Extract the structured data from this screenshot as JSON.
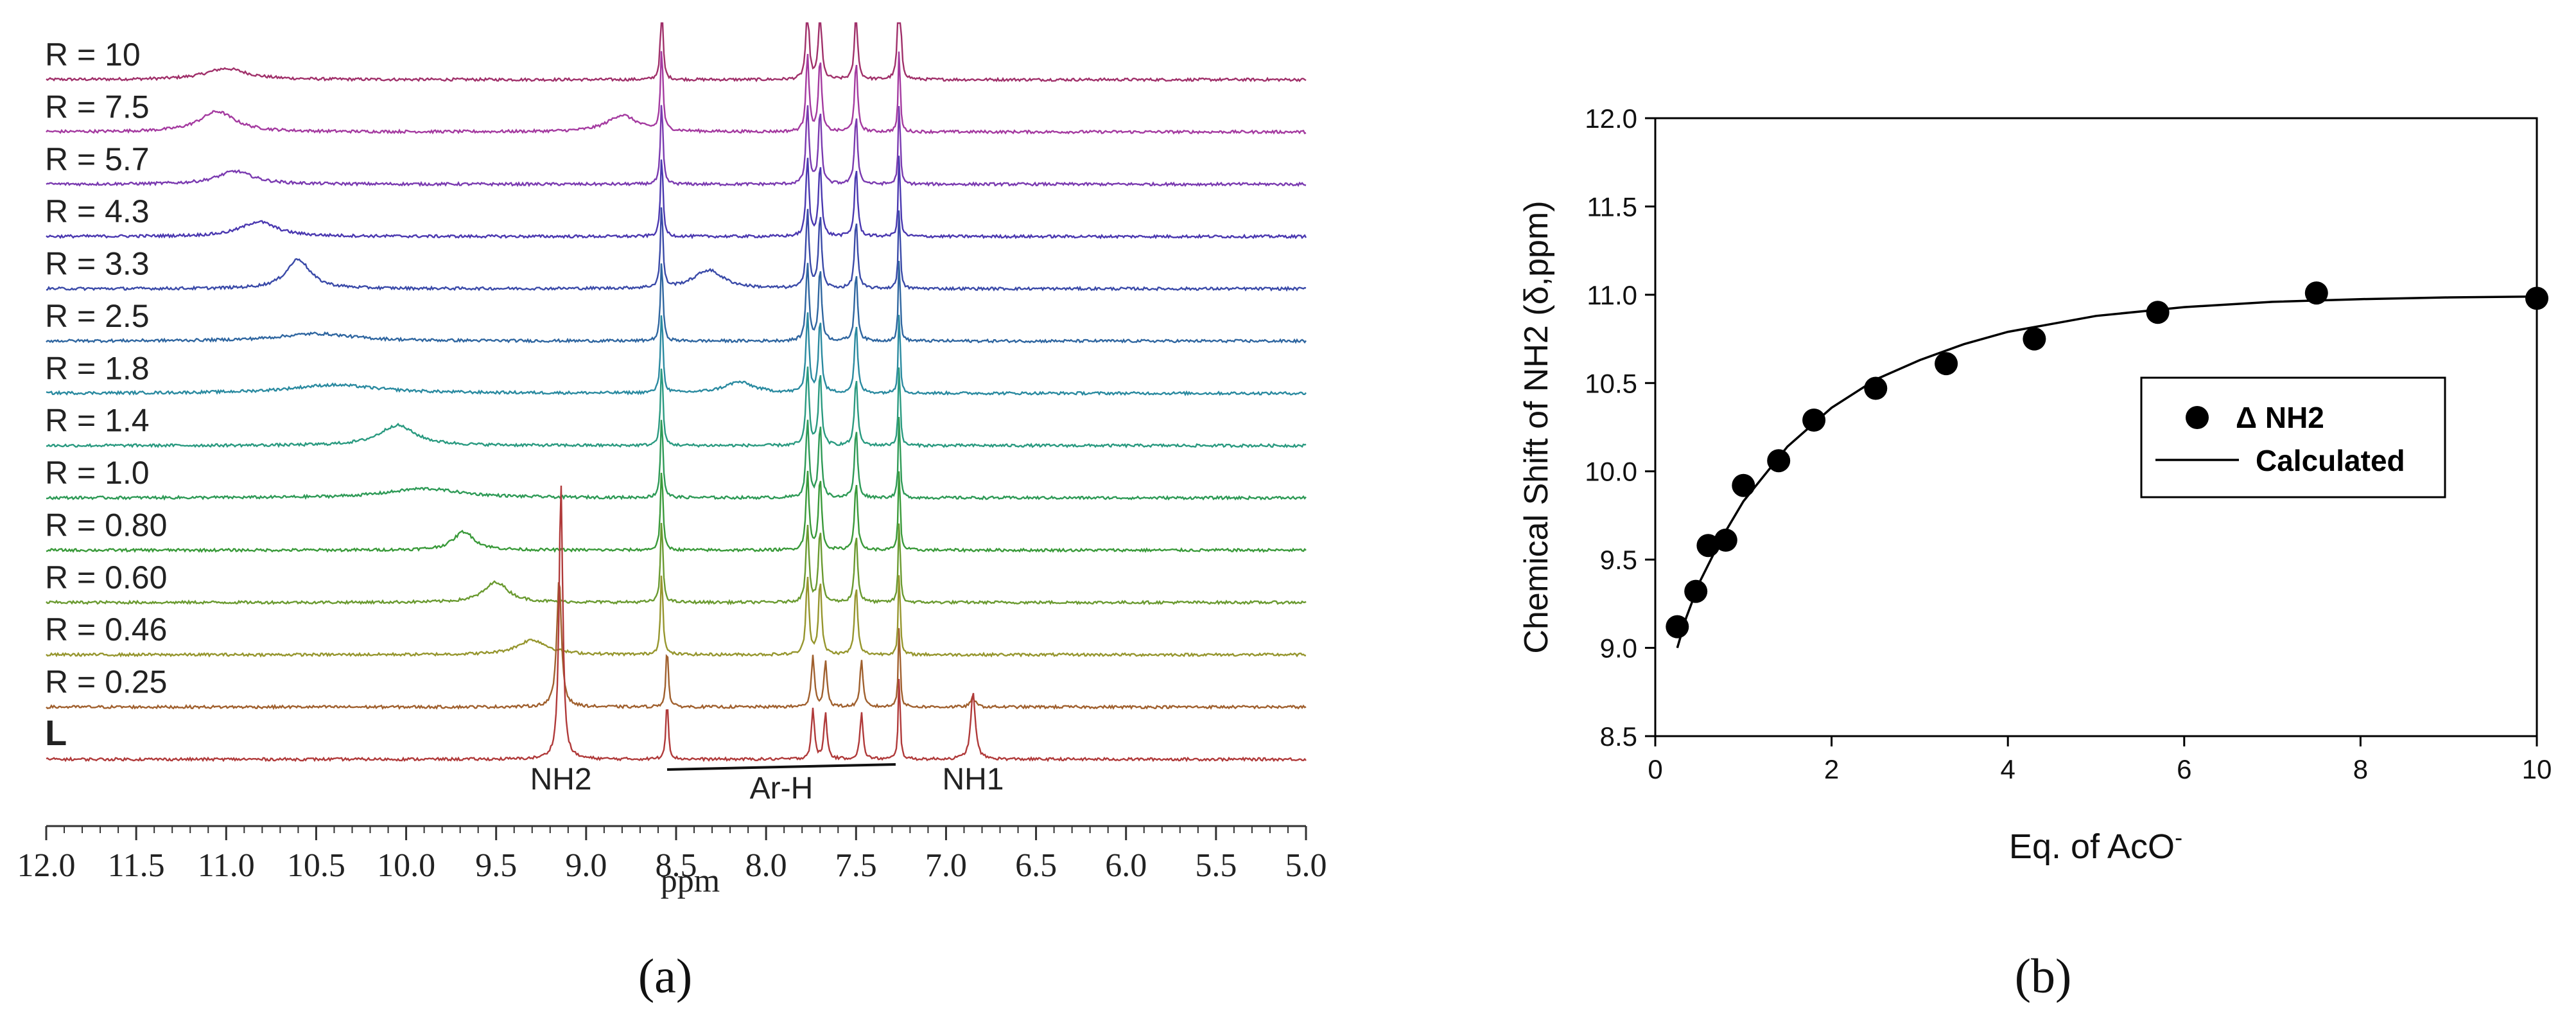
{
  "chart_data": [
    {
      "type": "line",
      "panel_label": "(a)",
      "title": "",
      "xlabel": "ppm",
      "ylabel": "",
      "xlim": [
        12.0,
        5.0
      ],
      "x_ticks": [
        "12.0",
        "11.5",
        "11.0",
        "10.5",
        "10.0",
        "9.5",
        "9.0",
        "8.5",
        "8.0",
        "7.5",
        "7.0",
        "6.5",
        "6.0",
        "5.5",
        "5.0"
      ],
      "grid": false,
      "series": [
        {
          "name": "R = 10",
          "color": "#a0306a",
          "nh2_ppm": 11.0,
          "nh2_height": 0.12,
          "nh2_width": 0.14,
          "ar_amp": 1.0
        },
        {
          "name": "R = 7.5",
          "color": "#a43aa0",
          "nh2_ppm": 11.05,
          "nh2_height": 0.22,
          "nh2_width": 0.12,
          "nh2b_ppm": 8.8,
          "nh2b_height": 0.18,
          "ar_amp": 1.0
        },
        {
          "name": "R = 5.7",
          "color": "#7a3ab0",
          "nh2_ppm": 10.95,
          "nh2_height": 0.14,
          "nh2_width": 0.12,
          "ar_amp": 1.0
        },
        {
          "name": "R = 4.3",
          "color": "#4a38b0",
          "nh2_ppm": 10.82,
          "nh2_height": 0.16,
          "nh2_width": 0.12,
          "ar_amp": 1.0
        },
        {
          "name": "R = 3.3",
          "color": "#3a4aa8",
          "nh2_ppm": 10.6,
          "nh2_height": 0.32,
          "nh2_width": 0.08,
          "nh2b_ppm": 8.32,
          "nh2b_height": 0.2,
          "ar_amp": 1.0
        },
        {
          "name": "R = 2.5",
          "color": "#2f66a0",
          "nh2_ppm": 10.5,
          "nh2_height": 0.08,
          "nh2_width": 0.25,
          "ar_amp": 1.0
        },
        {
          "name": "R = 1.8",
          "color": "#2a8aa0",
          "nh2_ppm": 10.4,
          "nh2_height": 0.09,
          "nh2_width": 0.3,
          "nh2b_ppm": 8.15,
          "nh2b_height": 0.12,
          "ar_amp": 1.0
        },
        {
          "name": "R = 1.4",
          "color": "#2a9a80",
          "nh2_ppm": 10.05,
          "nh2_height": 0.22,
          "nh2_width": 0.12,
          "ar_amp": 1.0
        },
        {
          "name": "R = 1.0",
          "color": "#2e9a56",
          "nh2_ppm": 9.9,
          "nh2_height": 0.1,
          "nh2_width": 0.25,
          "ar_amp": 1.0
        },
        {
          "name": "R = 0.80",
          "color": "#3a9a3a",
          "nh2_ppm": 9.68,
          "nh2_height": 0.2,
          "nh2_width": 0.07,
          "ar_amp": 1.0
        },
        {
          "name": "R = 0.60",
          "color": "#6a9a30",
          "nh2_ppm": 9.5,
          "nh2_height": 0.22,
          "nh2_width": 0.08,
          "ar_amp": 1.0
        },
        {
          "name": "R = 0.46",
          "color": "#96962e",
          "nh2_ppm": 9.3,
          "nh2_height": 0.16,
          "nh2_width": 0.1,
          "ar_amp": 1.0
        },
        {
          "name": "R = 0.25",
          "color": "#a0602e",
          "nh2_ppm": 9.15,
          "nh2_height": 1.4,
          "nh2_width": 0.015,
          "nh1_ppm": 6.85,
          "nh1_height": 0.4,
          "ar_amp": 1.0
        },
        {
          "name": "L",
          "color": "#b03a3a",
          "nh2_ppm": 9.14,
          "nh2_height": 3.0,
          "nh2_width": 0.012,
          "nh1_ppm": 6.85,
          "nh1_height": 2.9,
          "ar_amp": 1.0
        }
      ],
      "aromatic_peaks_ppm": [
        8.58,
        7.77,
        7.7,
        7.5
      ],
      "solvent_peak_ppm": 7.26,
      "annotations": [
        {
          "text": "NH2",
          "ppm": 9.14
        },
        {
          "text": "Ar-H",
          "ppm_range": [
            8.55,
            7.28
          ]
        },
        {
          "text": "NH1",
          "ppm": 6.85
        }
      ]
    },
    {
      "type": "scatter",
      "panel_label": "(b)",
      "title": "",
      "xlabel": "Eq. of AcO",
      "xlabel_superscript": "-",
      "ylabel": "Chemical Shift of NH2 (δ,ppm)",
      "xlim": [
        0,
        10
      ],
      "ylim": [
        8.5,
        12.0
      ],
      "x_ticks": [
        "0",
        "2",
        "4",
        "6",
        "8",
        "10"
      ],
      "y_ticks": [
        "8.5",
        "9.0",
        "9.5",
        "10.0",
        "10.5",
        "11.0",
        "11.5",
        "12.0"
      ],
      "grid": false,
      "legend_position": "middle-right",
      "series": [
        {
          "name": "Δ NH2",
          "style": "marker",
          "x": [
            0.25,
            0.46,
            0.6,
            0.8,
            1.0,
            1.4,
            1.8,
            2.5,
            3.3,
            4.3,
            5.7,
            7.5,
            10.0
          ],
          "y": [
            9.12,
            9.32,
            9.58,
            9.61,
            9.92,
            10.06,
            10.29,
            10.47,
            10.61,
            10.75,
            10.9,
            11.01,
            10.98
          ]
        },
        {
          "name": "Calculated",
          "style": "line",
          "x": [
            0.25,
            0.35,
            0.5,
            0.75,
            1.0,
            1.5,
            2.0,
            2.5,
            3.0,
            3.5,
            4.0,
            5.0,
            6.0,
            7.0,
            8.0,
            9.0,
            10.0
          ],
          "y": [
            9.0,
            9.17,
            9.37,
            9.62,
            9.83,
            10.14,
            10.36,
            10.52,
            10.63,
            10.72,
            10.79,
            10.88,
            10.93,
            10.96,
            10.975,
            10.985,
            10.99
          ]
        }
      ]
    }
  ]
}
